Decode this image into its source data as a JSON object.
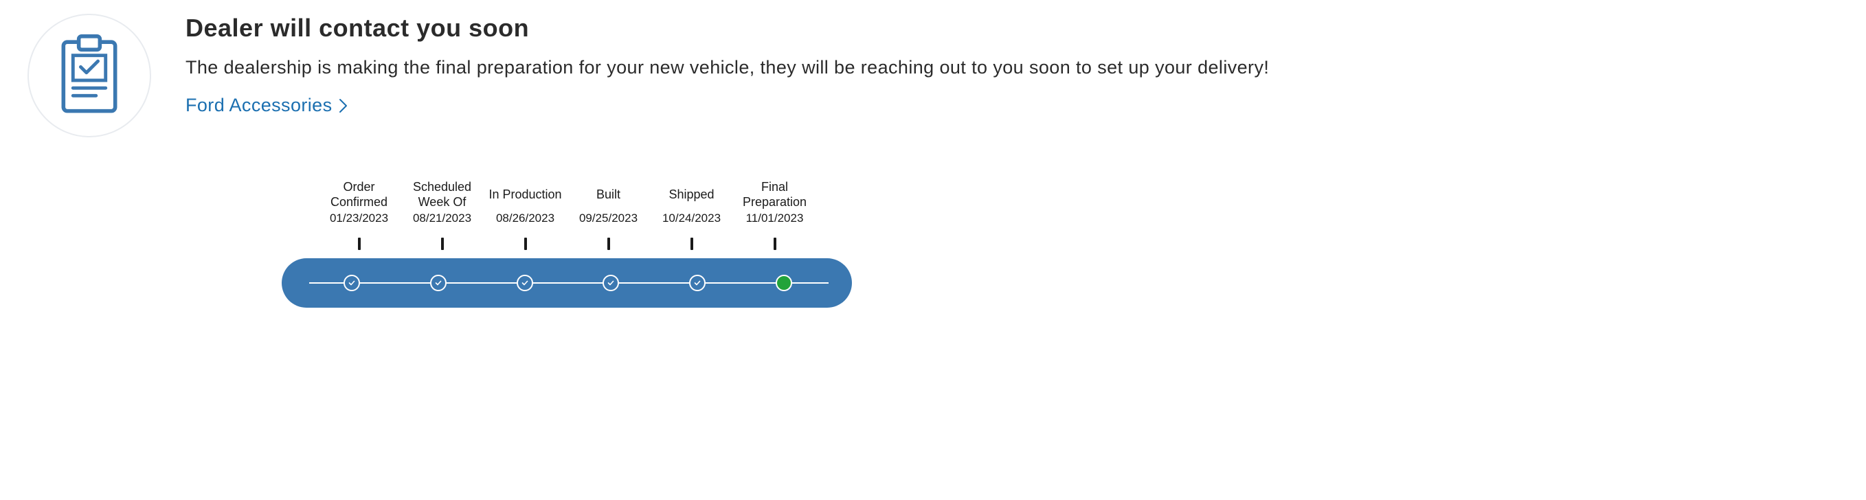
{
  "header": {
    "title": "Dealer will contact you soon",
    "description": "The dealership is making the final preparation for your new vehicle, they will be reaching out to you soon to set up your delivery!",
    "link_text": "Ford Accessories"
  },
  "colors": {
    "brand_icon": "#3b78b1",
    "pill_bg": "#3b78b1",
    "link": "#1b6fb0",
    "text": "#2b2b2b",
    "track_line": "#ffffff",
    "current_node": "#22a33a",
    "icon_circle_border": "#e8ebef",
    "background": "#ffffff"
  },
  "tracker": {
    "steps": [
      {
        "title": "Order\nConfirmed",
        "date": "01/23/2023",
        "state": "done"
      },
      {
        "title": "Scheduled\nWeek Of",
        "date": "08/21/2023",
        "state": "done"
      },
      {
        "title": "In Production",
        "date": "08/26/2023",
        "state": "done"
      },
      {
        "title": "Built",
        "date": "09/25/2023",
        "state": "done"
      },
      {
        "title": "Shipped",
        "date": "10/24/2023",
        "state": "done"
      },
      {
        "title": "Final\nPreparation",
        "date": "11/01/2023",
        "state": "current"
      }
    ]
  }
}
